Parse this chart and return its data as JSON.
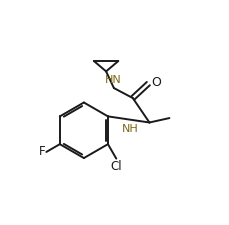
{
  "background_color": "#ffffff",
  "line_color": "#1a1a1a",
  "label_color_F": "#1a1a1a",
  "label_color_Cl": "#1a1a1a",
  "label_color_O": "#1a1a1a",
  "label_color_NH": "#7b6914",
  "label_color_HN": "#7b6914",
  "figsize": [
    2.3,
    2.25
  ],
  "dpi": 100,
  "xlim": [
    0,
    10
  ],
  "ylim": [
    0,
    10
  ]
}
